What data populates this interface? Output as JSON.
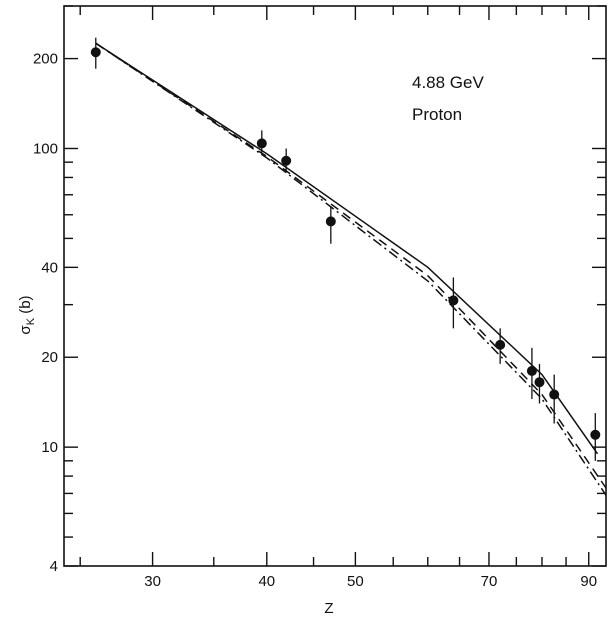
{
  "chart_data": {
    "type": "scatter",
    "ylabel_symbol": "σ",
    "ylabel_sub": "K",
    "ylabel_unit": "(b)",
    "xlabel": "Z",
    "annotations": [
      "4.88 GeV",
      "Proton"
    ],
    "x_scale": "log",
    "y_scale": "log",
    "xlim": [
      24,
      94
    ],
    "ylim": [
      4,
      300
    ],
    "x_ticks_major": [
      30,
      40,
      50,
      70,
      90
    ],
    "x_tick_labels": [
      "30",
      "40",
      "50",
      "70",
      "90"
    ],
    "y_ticks_labeled": [
      4,
      10,
      20,
      40,
      100,
      200
    ],
    "y_tick_labels": [
      "4",
      "10",
      "20",
      "40",
      "100",
      "200"
    ],
    "grid": false,
    "points": [
      {
        "x": 26,
        "y": 210,
        "err": [
          185,
          235
        ]
      },
      {
        "x": 39.5,
        "y": 104,
        "err": [
          95,
          115
        ]
      },
      {
        "x": 42,
        "y": 91,
        "err": [
          83,
          100
        ]
      },
      {
        "x": 47,
        "y": 57,
        "err": [
          48,
          64
        ]
      },
      {
        "x": 64,
        "y": 31,
        "err": [
          25,
          37
        ]
      },
      {
        "x": 72,
        "y": 22,
        "err": [
          19,
          25
        ]
      },
      {
        "x": 78,
        "y": 18,
        "err": [
          14.5,
          21.5
        ]
      },
      {
        "x": 79.5,
        "y": 16.5,
        "err": [
          14,
          19
        ]
      },
      {
        "x": 82.5,
        "y": 15,
        "err": [
          12,
          17.5
        ]
      },
      {
        "x": 91.5,
        "y": 11,
        "err": [
          9,
          13
        ]
      }
    ],
    "curves": [
      {
        "style": "solid",
        "x": [
          26,
          40,
          60,
          80,
          92
        ],
        "y": [
          225,
          96,
          40,
          17.5,
          9.5
        ]
      },
      {
        "style": "dashed",
        "x": [
          26,
          40,
          60,
          80,
          94
        ],
        "y": [
          225,
          94,
          37.5,
          15,
          7.3
        ]
      },
      {
        "style": "dash-dot",
        "x": [
          26,
          40,
          60,
          80,
          94
        ],
        "y": [
          225,
          93,
          36,
          14.5,
          6.9
        ]
      }
    ]
  }
}
